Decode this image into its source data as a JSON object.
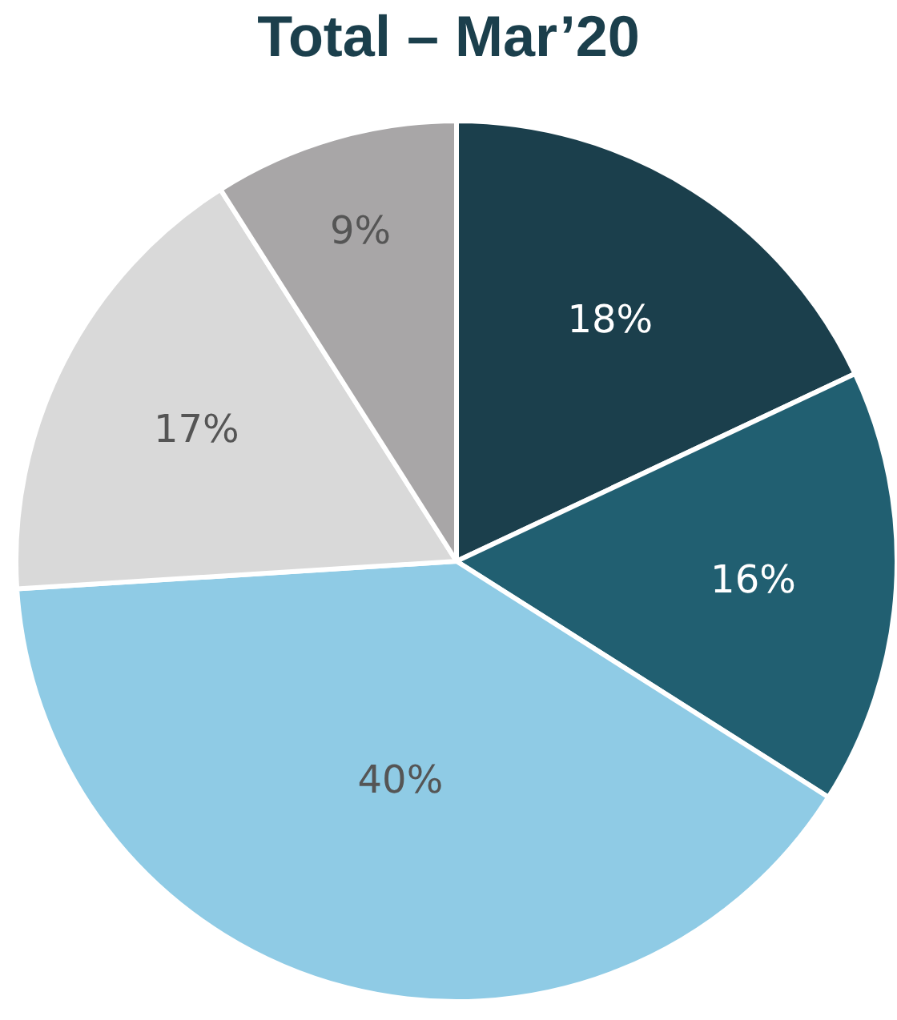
{
  "chart_data": {
    "type": "pie",
    "title": "Total – Mar’20",
    "categories": [
      null,
      null,
      null,
      null,
      null
    ],
    "values": [
      18,
      16,
      40,
      17,
      9
    ],
    "colors": [
      "#1b3f4c",
      "#215f71",
      "#8fcbe5",
      "#d9d9d9",
      "#a8a6a7"
    ],
    "value_labels": [
      "18%",
      "16%",
      "40%",
      "17%",
      "9%"
    ]
  }
}
